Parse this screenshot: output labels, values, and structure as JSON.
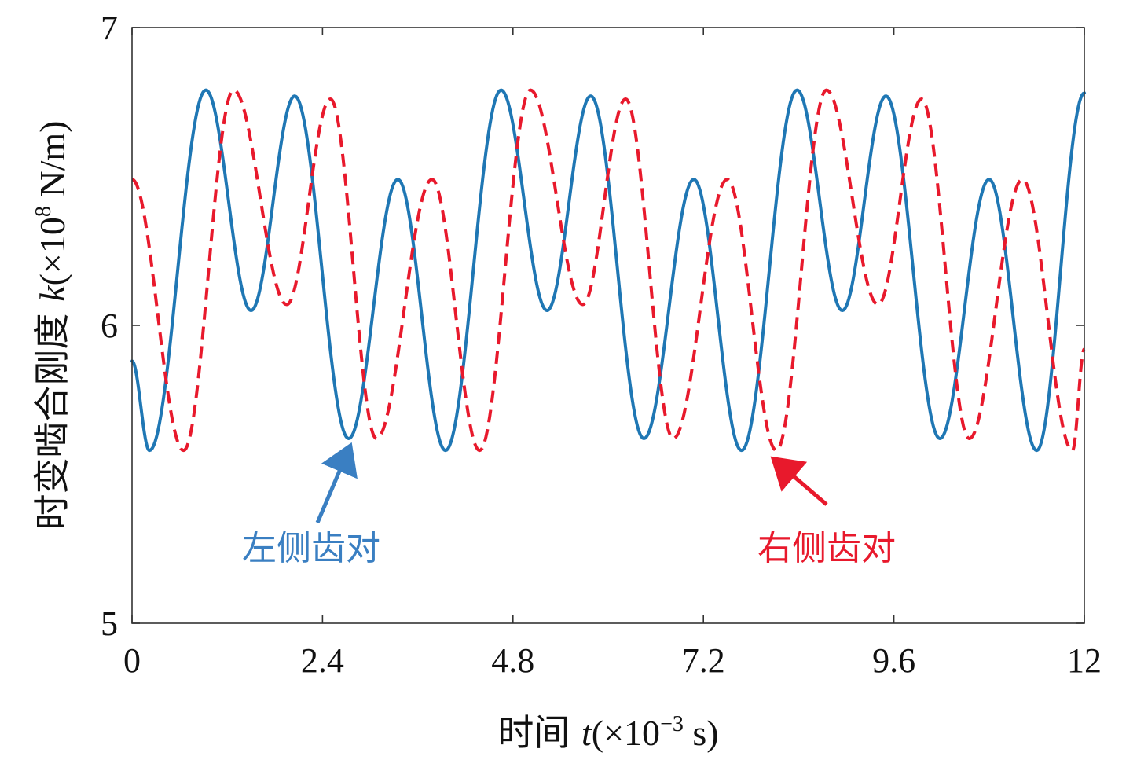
{
  "chart_data": {
    "type": "line",
    "xlabel": {
      "prefix": "时间 ",
      "var": "t",
      "unit_open": "(×10",
      "unit_exp": "−3",
      "unit_close": " s)"
    },
    "ylabel": {
      "prefix": "时变啮合刚度 ",
      "var": "k",
      "unit_open": "(×10",
      "unit_exp": "8",
      "unit_close": " N/m)"
    },
    "xlim": [
      0,
      12
    ],
    "ylim": [
      5,
      7
    ],
    "xticks": [
      "0",
      "2.4",
      "4.8",
      "7.2",
      "9.6",
      "12"
    ],
    "yticks": [
      "5",
      "6",
      "7"
    ],
    "grid": false,
    "series": [
      {
        "name": "左侧齿对",
        "color": "#1f77b4",
        "style": "solid",
        "points": [
          [
            0.0,
            5.88
          ],
          [
            0.22,
            5.58
          ],
          [
            0.93,
            6.79
          ],
          [
            1.5,
            6.05
          ],
          [
            2.05,
            6.77
          ],
          [
            2.73,
            5.62
          ],
          [
            3.35,
            6.49
          ],
          [
            3.95,
            5.58
          ],
          [
            4.65,
            6.79
          ],
          [
            5.23,
            6.05
          ],
          [
            5.78,
            6.77
          ],
          [
            6.45,
            5.62
          ],
          [
            7.08,
            6.49
          ],
          [
            7.68,
            5.58
          ],
          [
            8.38,
            6.79
          ],
          [
            8.95,
            6.05
          ],
          [
            9.5,
            6.77
          ],
          [
            10.18,
            5.62
          ],
          [
            10.8,
            6.49
          ],
          [
            11.4,
            5.58
          ],
          [
            12.0,
            6.78
          ]
        ]
      },
      {
        "name": "右侧齿对",
        "color": "#e8192c",
        "style": "dashed",
        "points": [
          [
            0.0,
            6.49
          ],
          [
            0.65,
            5.58
          ],
          [
            1.28,
            6.79
          ],
          [
            1.95,
            6.07
          ],
          [
            2.5,
            6.76
          ],
          [
            3.08,
            5.62
          ],
          [
            3.78,
            6.49
          ],
          [
            4.38,
            5.58
          ],
          [
            5.02,
            6.79
          ],
          [
            5.68,
            6.07
          ],
          [
            6.22,
            6.76
          ],
          [
            6.82,
            5.62
          ],
          [
            7.5,
            6.49
          ],
          [
            8.12,
            5.58
          ],
          [
            8.75,
            6.79
          ],
          [
            9.4,
            6.07
          ],
          [
            9.95,
            6.76
          ],
          [
            10.55,
            5.62
          ],
          [
            11.22,
            6.49
          ],
          [
            11.85,
            5.58
          ],
          [
            12.0,
            5.92
          ]
        ]
      }
    ],
    "annotations": [
      {
        "text": "左侧齿对",
        "color": "#3a7fc2",
        "arrow_to": [
          2.73,
          5.62
        ]
      },
      {
        "text": "右侧齿对",
        "color": "#e8192c",
        "arrow_to": [
          8.12,
          5.58
        ]
      }
    ]
  }
}
